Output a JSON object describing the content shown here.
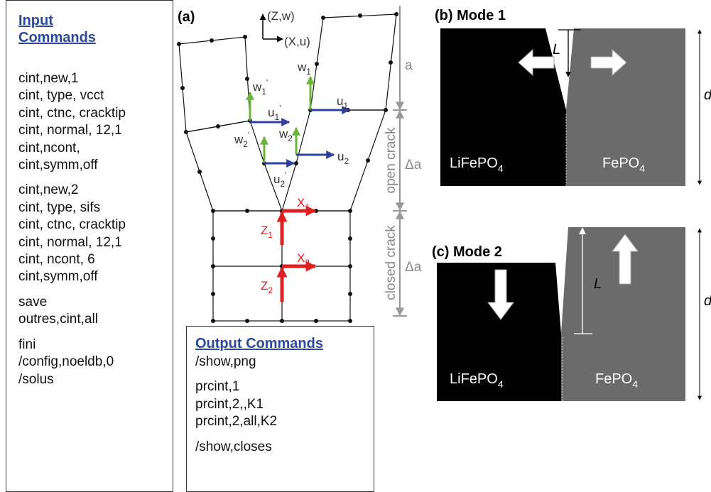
{
  "input_panel": {
    "title": "Input Commands",
    "groups": [
      [
        "cint,new,1",
        "cint, type, vcct",
        "cint, ctnc, cracktip",
        "cint, normal, 12,1",
        "cint,ncont,",
        "cint,symm,off"
      ],
      [
        "cint,new,2",
        "cint, type, sifs",
        "cint, ctnc, cracktip",
        "cint, normal, 12,1",
        "cint, ncont, 6",
        "cint,symm,off"
      ],
      [
        "save",
        "outres,cint,all"
      ],
      [
        "fini",
        "/config,noeldb,0",
        "/solus"
      ]
    ]
  },
  "output_panel": {
    "title": "Output Commands",
    "groups": [
      [
        "/show,png"
      ],
      [
        "prcint,1",
        "prcint,2,,K1",
        "prcint,2,all,K2"
      ],
      [
        "/show,closes"
      ]
    ]
  },
  "panel_a": {
    "label": "(a)",
    "axis_z": "(Z,w)",
    "axis_x": "(X,u)",
    "dimensions": [
      {
        "label": "a"
      },
      {
        "label": "Δa",
        "region": "open crack"
      },
      {
        "label": "Δa",
        "region": "closed crack"
      }
    ],
    "vectors": [
      {
        "text": "w",
        "sub": "1",
        "sup": "'"
      },
      {
        "text": "u",
        "sub": "1",
        "sup": "'"
      },
      {
        "text": "w",
        "sub": "1"
      },
      {
        "text": "u",
        "sub": "1"
      },
      {
        "text": "w",
        "sub": "2",
        "sup": "'"
      },
      {
        "text": "w",
        "sub": "2"
      },
      {
        "text": "u",
        "sub": "2",
        "sup": "'"
      },
      {
        "text": "u",
        "sub": "2"
      },
      {
        "text": "X",
        "sub": "1"
      },
      {
        "text": "Z",
        "sub": "1"
      },
      {
        "text": "X",
        "sub": "2"
      },
      {
        "text": "Z",
        "sub": "2"
      }
    ]
  },
  "panel_b": {
    "label": "(b) Mode 1",
    "length": "L",
    "depth": "d",
    "left_material": {
      "text": "LiFePO",
      "sub": "4"
    },
    "right_material": {
      "text": "FePO",
      "sub": "4"
    }
  },
  "panel_c": {
    "label": "(c) Mode 2",
    "length": "L",
    "depth": "d",
    "left_material": {
      "text": "LiFePO",
      "sub": "4"
    },
    "right_material": {
      "text": "FePO",
      "sub": "4"
    }
  }
}
